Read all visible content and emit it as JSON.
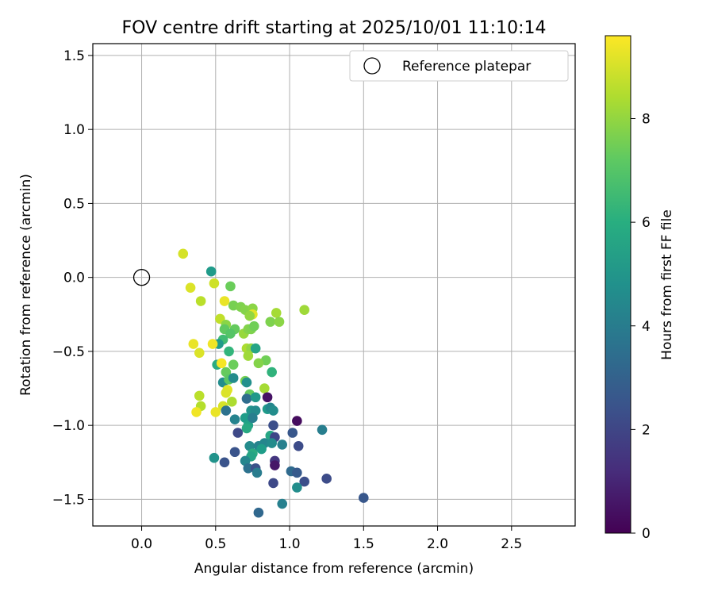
{
  "chart_data": {
    "type": "scatter",
    "title": "FOV centre drift starting at 2025/10/01 11:10:14",
    "xlabel": "Angular distance from reference (arcmin)",
    "ylabel": "Rotation from reference (arcmin)",
    "xlim": [
      -0.33,
      2.93
    ],
    "ylim": [
      -1.68,
      1.58
    ],
    "xticks": [
      "0.0",
      "0.5",
      "1.0",
      "1.5",
      "2.0",
      "2.5"
    ],
    "xtick_values": [
      0,
      0.5,
      1.0,
      1.5,
      2.0,
      2.5
    ],
    "yticks": [
      "−1.5",
      "−1.0",
      "−0.5",
      "0.0",
      "0.5",
      "1.0",
      "1.5"
    ],
    "ytick_values": [
      -1.5,
      -1.0,
      -0.5,
      0.0,
      0.5,
      1.0,
      1.5
    ],
    "grid": true,
    "legend_position": "top-right",
    "colormap": "viridis",
    "colorbar": {
      "label": "Hours from first FF file",
      "range": [
        0,
        9.6
      ],
      "ticks": [
        "0",
        "2",
        "4",
        "6",
        "8"
      ],
      "tick_values": [
        0,
        2,
        4,
        6,
        8
      ]
    },
    "reference": {
      "label": "Reference platepar",
      "x": 0.0,
      "y": 0.0
    },
    "points": [
      {
        "x": 0.28,
        "y": 0.16,
        "h": 9.0
      },
      {
        "x": 0.33,
        "y": -0.07,
        "h": 9.1
      },
      {
        "x": 0.4,
        "y": -0.16,
        "h": 8.6
      },
      {
        "x": 0.47,
        "y": 0.04,
        "h": 5.2
      },
      {
        "x": 0.49,
        "y": -0.04,
        "h": 8.9
      },
      {
        "x": 0.6,
        "y": -0.06,
        "h": 7.4
      },
      {
        "x": 0.56,
        "y": -0.16,
        "h": 9.3
      },
      {
        "x": 0.62,
        "y": -0.19,
        "h": 7.6
      },
      {
        "x": 0.67,
        "y": -0.2,
        "h": 7.7
      },
      {
        "x": 0.7,
        "y": -0.22,
        "h": 7.8
      },
      {
        "x": 0.75,
        "y": -0.21,
        "h": 7.9
      },
      {
        "x": 0.75,
        "y": -0.25,
        "h": 9.2
      },
      {
        "x": 0.73,
        "y": -0.26,
        "h": 8.0
      },
      {
        "x": 0.91,
        "y": -0.24,
        "h": 8.3
      },
      {
        "x": 1.1,
        "y": -0.22,
        "h": 8.2
      },
      {
        "x": 0.53,
        "y": -0.28,
        "h": 8.7
      },
      {
        "x": 0.57,
        "y": -0.32,
        "h": 7.9
      },
      {
        "x": 0.56,
        "y": -0.35,
        "h": 7.2
      },
      {
        "x": 0.63,
        "y": -0.35,
        "h": 7.3
      },
      {
        "x": 0.6,
        "y": -0.38,
        "h": 7.0
      },
      {
        "x": 0.69,
        "y": -0.38,
        "h": 8.1
      },
      {
        "x": 0.72,
        "y": -0.35,
        "h": 7.8
      },
      {
        "x": 0.74,
        "y": -0.35,
        "h": 7.7
      },
      {
        "x": 0.76,
        "y": -0.33,
        "h": 7.5
      },
      {
        "x": 0.87,
        "y": -0.3,
        "h": 7.7
      },
      {
        "x": 0.93,
        "y": -0.3,
        "h": 7.9
      },
      {
        "x": 0.55,
        "y": -0.42,
        "h": 6.6
      },
      {
        "x": 0.52,
        "y": -0.45,
        "h": 5.2
      },
      {
        "x": 0.48,
        "y": -0.45,
        "h": 9.4
      },
      {
        "x": 0.35,
        "y": -0.45,
        "h": 9.3
      },
      {
        "x": 0.39,
        "y": -0.51,
        "h": 9.1
      },
      {
        "x": 0.59,
        "y": -0.5,
        "h": 6.3
      },
      {
        "x": 0.71,
        "y": -0.48,
        "h": 8.4
      },
      {
        "x": 0.74,
        "y": -0.48,
        "h": 8.0
      },
      {
        "x": 0.72,
        "y": -0.53,
        "h": 8.2
      },
      {
        "x": 0.77,
        "y": -0.48,
        "h": 5.6
      },
      {
        "x": 0.84,
        "y": -0.56,
        "h": 7.5
      },
      {
        "x": 0.79,
        "y": -0.58,
        "h": 7.8
      },
      {
        "x": 0.51,
        "y": -0.59,
        "h": 5.9
      },
      {
        "x": 0.54,
        "y": -0.58,
        "h": 9.5
      },
      {
        "x": 0.62,
        "y": -0.59,
        "h": 7.4
      },
      {
        "x": 0.57,
        "y": -0.64,
        "h": 7.3
      },
      {
        "x": 0.88,
        "y": -0.64,
        "h": 6.2
      },
      {
        "x": 0.55,
        "y": -0.71,
        "h": 4.7
      },
      {
        "x": 0.59,
        "y": -0.69,
        "h": 7.1
      },
      {
        "x": 0.62,
        "y": -0.68,
        "h": 4.6
      },
      {
        "x": 0.7,
        "y": -0.7,
        "h": 7.6
      },
      {
        "x": 0.71,
        "y": -0.71,
        "h": 4.8
      },
      {
        "x": 0.83,
        "y": -0.75,
        "h": 8.3
      },
      {
        "x": 0.58,
        "y": -0.76,
        "h": 9.2
      },
      {
        "x": 0.39,
        "y": -0.8,
        "h": 8.6
      },
      {
        "x": 0.57,
        "y": -0.78,
        "h": 9.1
      },
      {
        "x": 0.73,
        "y": -0.79,
        "h": 7.3
      },
      {
        "x": 0.71,
        "y": -0.82,
        "h": 3.4
      },
      {
        "x": 0.77,
        "y": -0.81,
        "h": 5.1
      },
      {
        "x": 0.61,
        "y": -0.84,
        "h": 8.4
      },
      {
        "x": 0.85,
        "y": -0.81,
        "h": 0.5
      },
      {
        "x": 0.4,
        "y": -0.87,
        "h": 8.5
      },
      {
        "x": 0.55,
        "y": -0.87,
        "h": 9.0
      },
      {
        "x": 0.37,
        "y": -0.91,
        "h": 9.4
      },
      {
        "x": 0.5,
        "y": -0.91,
        "h": 9.3
      },
      {
        "x": 0.57,
        "y": -0.9,
        "h": 3.6
      },
      {
        "x": 0.74,
        "y": -0.9,
        "h": 4.9
      },
      {
        "x": 0.77,
        "y": -0.9,
        "h": 4.6
      },
      {
        "x": 0.85,
        "y": -0.89,
        "h": 5.2
      },
      {
        "x": 0.87,
        "y": -0.88,
        "h": 4.4
      },
      {
        "x": 0.89,
        "y": -0.9,
        "h": 4.7
      },
      {
        "x": 0.63,
        "y": -0.96,
        "h": 4.3
      },
      {
        "x": 0.7,
        "y": -0.95,
        "h": 5.3
      },
      {
        "x": 0.72,
        "y": -1.0,
        "h": 5.5
      },
      {
        "x": 0.71,
        "y": -1.02,
        "h": 5.8
      },
      {
        "x": 0.75,
        "y": -0.95,
        "h": 4.1
      },
      {
        "x": 0.89,
        "y": -1.0,
        "h": 2.3
      },
      {
        "x": 1.05,
        "y": -0.97,
        "h": 0.3
      },
      {
        "x": 1.22,
        "y": -1.03,
        "h": 4.1
      },
      {
        "x": 0.65,
        "y": -1.05,
        "h": 2.1
      },
      {
        "x": 0.87,
        "y": -1.07,
        "h": 5.7
      },
      {
        "x": 0.9,
        "y": -1.08,
        "h": 2.0
      },
      {
        "x": 1.02,
        "y": -1.05,
        "h": 2.6
      },
      {
        "x": 0.73,
        "y": -1.14,
        "h": 4.6
      },
      {
        "x": 0.79,
        "y": -1.14,
        "h": 4.3
      },
      {
        "x": 0.83,
        "y": -1.12,
        "h": 4.4
      },
      {
        "x": 0.88,
        "y": -1.12,
        "h": 4.6
      },
      {
        "x": 0.95,
        "y": -1.13,
        "h": 4.2
      },
      {
        "x": 1.06,
        "y": -1.14,
        "h": 2.2
      },
      {
        "x": 0.63,
        "y": -1.18,
        "h": 2.5
      },
      {
        "x": 0.75,
        "y": -1.19,
        "h": 5.9
      },
      {
        "x": 0.74,
        "y": -1.21,
        "h": 5.6
      },
      {
        "x": 0.81,
        "y": -1.16,
        "h": 5.3
      },
      {
        "x": 0.49,
        "y": -1.22,
        "h": 4.9
      },
      {
        "x": 0.56,
        "y": -1.25,
        "h": 2.5
      },
      {
        "x": 0.7,
        "y": -1.24,
        "h": 4.4
      },
      {
        "x": 0.9,
        "y": -1.24,
        "h": 1.5
      },
      {
        "x": 0.9,
        "y": -1.27,
        "h": 0.6
      },
      {
        "x": 0.72,
        "y": -1.29,
        "h": 3.6
      },
      {
        "x": 0.77,
        "y": -1.29,
        "h": 2.4
      },
      {
        "x": 0.78,
        "y": -1.32,
        "h": 4.0
      },
      {
        "x": 1.01,
        "y": -1.31,
        "h": 3.3
      },
      {
        "x": 1.05,
        "y": -1.32,
        "h": 2.7
      },
      {
        "x": 0.89,
        "y": -1.39,
        "h": 2.1
      },
      {
        "x": 1.1,
        "y": -1.38,
        "h": 2.3
      },
      {
        "x": 1.25,
        "y": -1.36,
        "h": 2.2
      },
      {
        "x": 1.05,
        "y": -1.42,
        "h": 4.7
      },
      {
        "x": 0.95,
        "y": -1.53,
        "h": 4.2
      },
      {
        "x": 1.5,
        "y": -1.49,
        "h": 2.6
      },
      {
        "x": 0.79,
        "y": -1.59,
        "h": 3.2
      }
    ]
  }
}
